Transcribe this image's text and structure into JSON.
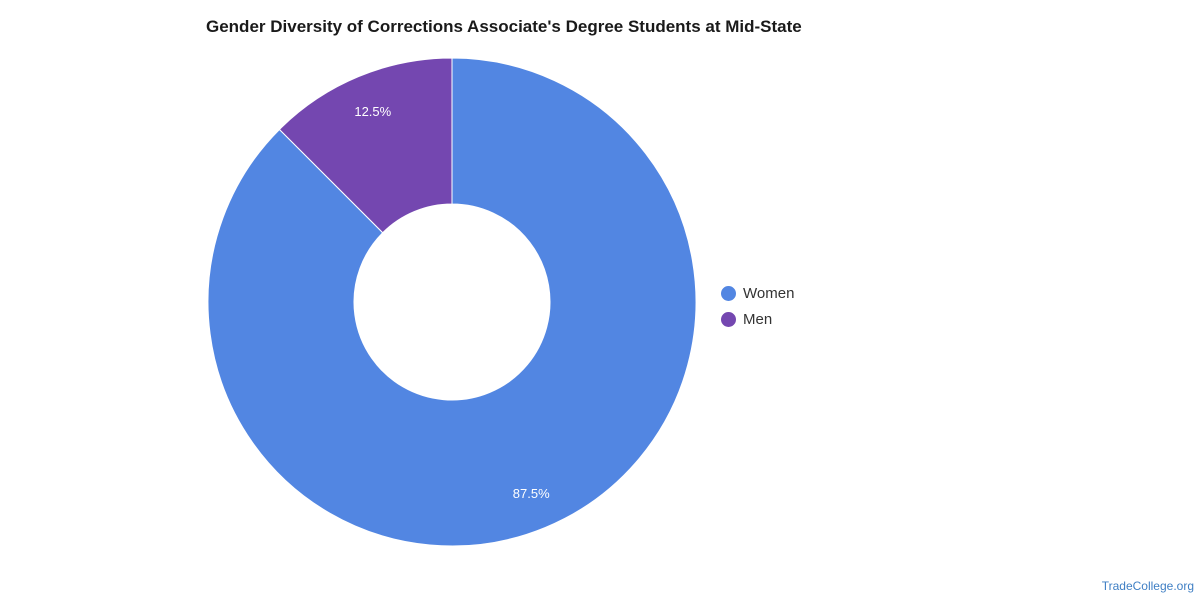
{
  "chart_data": {
    "type": "pie",
    "title": "Gender Diversity of Corrections Associate's Degree Students at Mid-State",
    "donut": true,
    "legend_position": "right",
    "slices": [
      {
        "label": "Women",
        "value": 87.5,
        "display": "87.5%",
        "color": "#5286e2"
      },
      {
        "label": "Men",
        "value": 12.5,
        "display": "12.5%",
        "color": "#7447b0"
      }
    ]
  },
  "watermark": "TradeCollege.org"
}
